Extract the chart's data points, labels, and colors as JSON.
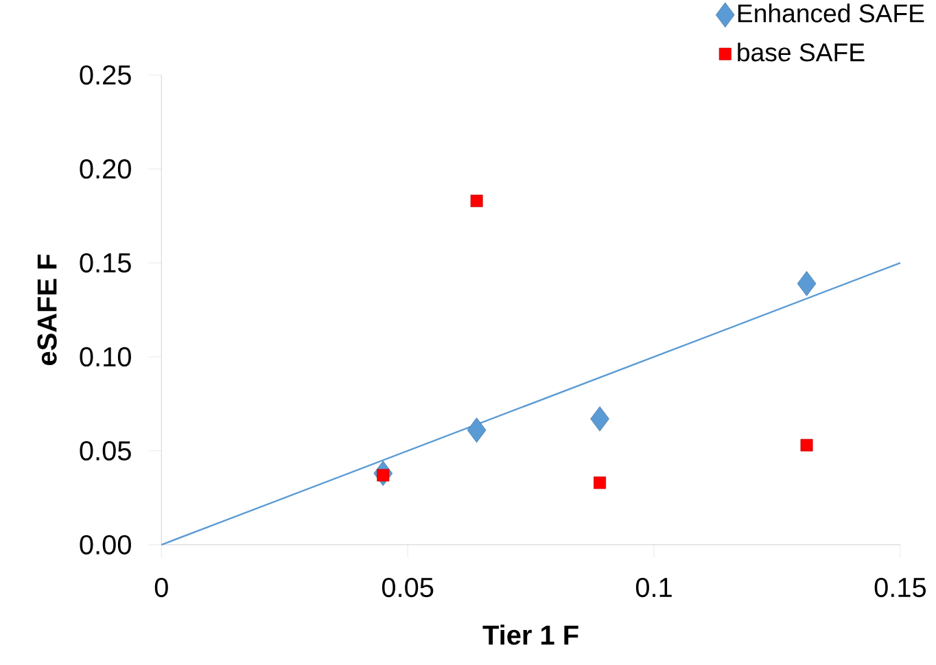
{
  "chart_data": {
    "type": "scatter",
    "xlabel": "Tier 1 F",
    "ylabel": "eSAFE F",
    "xlim": [
      0,
      0.15
    ],
    "ylim": [
      0,
      0.25
    ],
    "xticks": [
      0,
      0.05,
      0.1,
      0.15
    ],
    "yticks": [
      {
        "value": 0,
        "label": "0.00"
      },
      {
        "value": 0.05,
        "label": "0.05"
      },
      {
        "value": 0.1,
        "label": "0.10"
      },
      {
        "value": 0.15,
        "label": "0.15"
      },
      {
        "value": 0.2,
        "label": "0.20"
      },
      {
        "value": 0.25,
        "label": "0.25"
      }
    ],
    "grid": false,
    "legend": "top right",
    "series": [
      {
        "name": "Enhanced SAFE",
        "color": "#5b9bd5",
        "marker": "diamond",
        "x": [
          0.045,
          0.064,
          0.089,
          0.131
        ],
        "values": [
          0.038,
          0.061,
          0.067,
          0.139
        ]
      },
      {
        "name": "base SAFE",
        "color": "#ff0000",
        "marker": "square",
        "x": [
          0.045,
          0.064,
          0.089,
          0.131
        ],
        "values": [
          0.037,
          0.183,
          0.033,
          0.053
        ]
      },
      {
        "type": "line",
        "color": "#5b9bd5",
        "marker": "none",
        "line_style": "solid",
        "x": [
          0,
          0.15
        ],
        "values": [
          0,
          0.15
        ]
      }
    ]
  }
}
